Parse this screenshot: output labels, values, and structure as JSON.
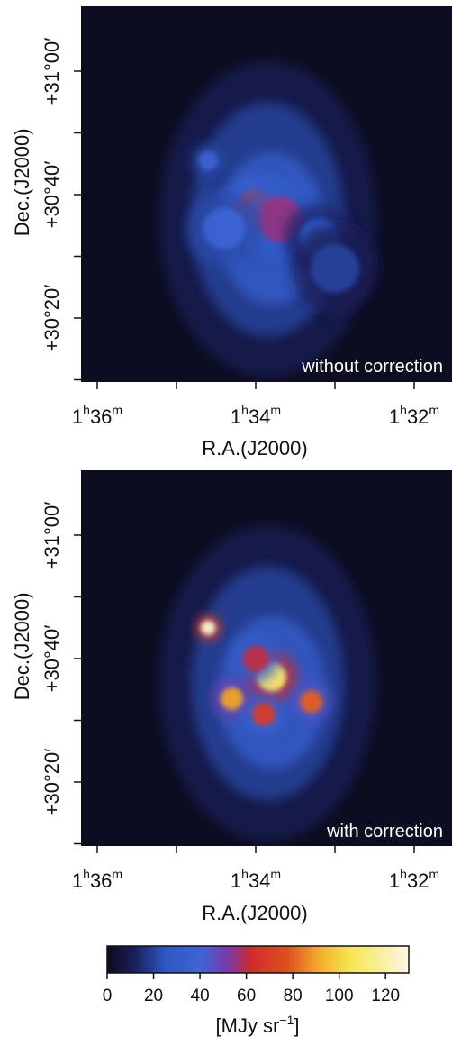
{
  "chart_data": [
    {
      "type": "heatmap",
      "panel_label": "without correction",
      "xlabel": "R.A.(J2000)",
      "ylabel": "Dec.(J2000)",
      "x_ticks": [
        {
          "h": "1",
          "hsup": "h",
          "m": "36",
          "msup": "m"
        },
        {
          "h": "1",
          "hsup": "h",
          "m": "34",
          "msup": "m"
        },
        {
          "h": "1",
          "hsup": "h",
          "m": "32",
          "msup": "m"
        }
      ],
      "y_ticks": [
        "+31°00′",
        "+30°40′",
        "+30°20′"
      ],
      "peak_MJy_sr": 78,
      "sources": [
        {
          "ra_min": 94.0,
          "dec_arcmin": 37.5,
          "amp": 70,
          "sigma": 1.2
        },
        {
          "ra_min": 93.7,
          "dec_arcmin": 36.0,
          "amp": 55,
          "sigma": 1.4
        },
        {
          "ra_min": 94.4,
          "dec_arcmin": 34.5,
          "amp": 40,
          "sigma": 1.3
        },
        {
          "ra_min": 94.6,
          "dec_arcmin": 45.5,
          "amp": 38,
          "sigma": 0.6
        },
        {
          "ra_min": 93.2,
          "dec_arcmin": 33.0,
          "amp": 25,
          "sigma": 1.2
        },
        {
          "ra_min": 93.0,
          "dec_arcmin": 28.0,
          "amp": 20,
          "sigma": 1.5
        }
      ]
    },
    {
      "type": "heatmap",
      "panel_label": "with correction",
      "xlabel": "R.A.(J2000)",
      "ylabel": "Dec.(J2000)",
      "x_ticks": [
        {
          "h": "1",
          "hsup": "h",
          "m": "36",
          "msup": "m"
        },
        {
          "h": "1",
          "hsup": "h",
          "m": "34",
          "msup": "m"
        },
        {
          "h": "1",
          "hsup": "h",
          "m": "32",
          "msup": "m"
        }
      ],
      "y_ticks": [
        "+31°00′",
        "+30°40′",
        "+30°20′"
      ],
      "peak_MJy_sr": 125,
      "sources": [
        {
          "ra_min": 93.8,
          "dec_arcmin": 37.0,
          "amp": 110,
          "sigma": 0.9
        },
        {
          "ra_min": 94.3,
          "dec_arcmin": 33.5,
          "amp": 90,
          "sigma": 0.7
        },
        {
          "ra_min": 93.3,
          "dec_arcmin": 33.0,
          "amp": 80,
          "sigma": 0.7
        },
        {
          "ra_min": 94.6,
          "dec_arcmin": 45.0,
          "amp": 125,
          "sigma": 0.45
        },
        {
          "ra_min": 94.0,
          "dec_arcmin": 40.0,
          "amp": 60,
          "sigma": 0.8
        },
        {
          "ra_min": 93.9,
          "dec_arcmin": 31.0,
          "amp": 70,
          "sigma": 0.7
        }
      ]
    }
  ],
  "colorbar": {
    "ticks": [
      "0",
      "20",
      "40",
      "60",
      "80",
      "100",
      "120"
    ],
    "range": [
      0,
      130
    ],
    "unit_label": "[MJy sr",
    "unit_exp": "−1",
    "unit_close": "]",
    "stops": [
      {
        "v": 0,
        "color": "#0b0b1e"
      },
      {
        "v": 12,
        "color": "#1b1f5c"
      },
      {
        "v": 25,
        "color": "#2d58c2"
      },
      {
        "v": 40,
        "color": "#3e63d4"
      },
      {
        "v": 52,
        "color": "#7a3aa8"
      },
      {
        "v": 62,
        "color": "#d02b2b"
      },
      {
        "v": 78,
        "color": "#e0501f"
      },
      {
        "v": 92,
        "color": "#f2b22a"
      },
      {
        "v": 105,
        "color": "#f6e651"
      },
      {
        "v": 130,
        "color": "#fbf7e6"
      }
    ]
  }
}
